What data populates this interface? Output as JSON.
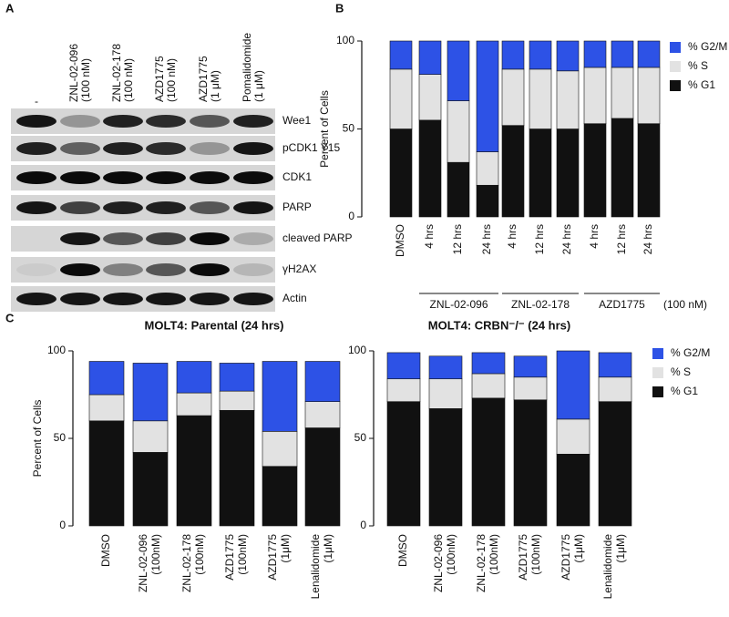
{
  "panels": [
    "A",
    "B",
    "C"
  ],
  "western_blot": {
    "lanes": [
      [
        "-"
      ],
      [
        "ZNL-02-096",
        "(100 nM)"
      ],
      [
        "ZNL-02-178",
        "(100 nM)"
      ],
      [
        "AZD1775",
        "(100 nM)"
      ],
      [
        "AZD1775",
        "(1 μM)"
      ],
      [
        "Pomalidomide",
        "(1 μM)"
      ]
    ],
    "rows": [
      "Wee1",
      "pCDK1 Y15",
      "CDK1",
      "PARP",
      "cleaved PARP",
      "γH2AX",
      "Actin"
    ]
  },
  "chart_data": [
    {
      "type": "stacked_bar",
      "ylabel": "Percent of Cells",
      "categories": [
        "DMSO",
        "4 hrs",
        "12 hrs",
        "24 hrs",
        "4 hrs",
        "12 hrs",
        "24 hrs",
        "4 hrs",
        "12 hrs",
        "24 hrs"
      ],
      "groups": [
        "ZNL-02-096",
        "ZNL-02-178",
        "AZD1775"
      ],
      "group_note": "(100 nM)",
      "series": [
        {
          "name": "% G1",
          "color": "#111111",
          "values": [
            50,
            55,
            31,
            18,
            52,
            50,
            50,
            53,
            56,
            53
          ]
        },
        {
          "name": "% S",
          "color": "#e2e2e2",
          "values": [
            34,
            26,
            35,
            19,
            32,
            34,
            33,
            32,
            29,
            32
          ]
        },
        {
          "name": "% G2/M",
          "color": "#2d52e6",
          "values": [
            16,
            19,
            34,
            63,
            16,
            16,
            17,
            15,
            15,
            15
          ]
        }
      ],
      "ylim": [
        0,
        100
      ],
      "yticks": [
        0,
        50,
        100
      ],
      "legend": "upper right"
    },
    {
      "type": "stacked_bar",
      "title": "MOLT4: Parental (24 hrs)",
      "ylabel": "Percent of Cells",
      "categories": [
        [
          "DMSO"
        ],
        [
          "ZNL-02-096",
          "(100nM)"
        ],
        [
          "ZNL-02-178",
          "(100nM)"
        ],
        [
          "AZD1775",
          "(100nM)"
        ],
        [
          "AZD1775",
          "(1μM)"
        ],
        [
          "Lenalidomide",
          "(1μM)"
        ]
      ],
      "series": [
        {
          "color": "#111111",
          "values": [
            60,
            42,
            63,
            66,
            34,
            56
          ]
        },
        {
          "color": "#e2e2e2",
          "values": [
            15,
            18,
            13,
            11,
            20,
            15
          ]
        },
        {
          "color": "#2d52e6",
          "values": [
            19,
            33,
            18,
            16,
            40,
            23
          ]
        }
      ],
      "ylim": [
        0,
        100
      ],
      "yticks": [
        0,
        50,
        100
      ]
    },
    {
      "type": "stacked_bar",
      "title": "MOLT4: CRBN⁻/⁻ (24 hrs)",
      "categories": [
        [
          "DMSO"
        ],
        [
          "ZNL-02-096",
          "(100nM)"
        ],
        [
          "ZNL-02-178",
          "(100nM)"
        ],
        [
          "AZD1775",
          "(100nM)"
        ],
        [
          "AZD1775",
          "(1μM)"
        ],
        [
          "Lenalidomide",
          "(1μM)"
        ]
      ],
      "series": [
        {
          "name": "% G1",
          "color": "#111111",
          "values": [
            71,
            67,
            73,
            72,
            41,
            71
          ]
        },
        {
          "name": "% S",
          "color": "#e2e2e2",
          "values": [
            13,
            17,
            14,
            13,
            20,
            14
          ]
        },
        {
          "name": "% G2/M",
          "color": "#2d52e6",
          "values": [
            15,
            13,
            12,
            12,
            39,
            14
          ]
        }
      ],
      "ylim": [
        0,
        100
      ],
      "yticks": [
        0,
        50,
        100
      ],
      "legend": "upper right"
    }
  ]
}
